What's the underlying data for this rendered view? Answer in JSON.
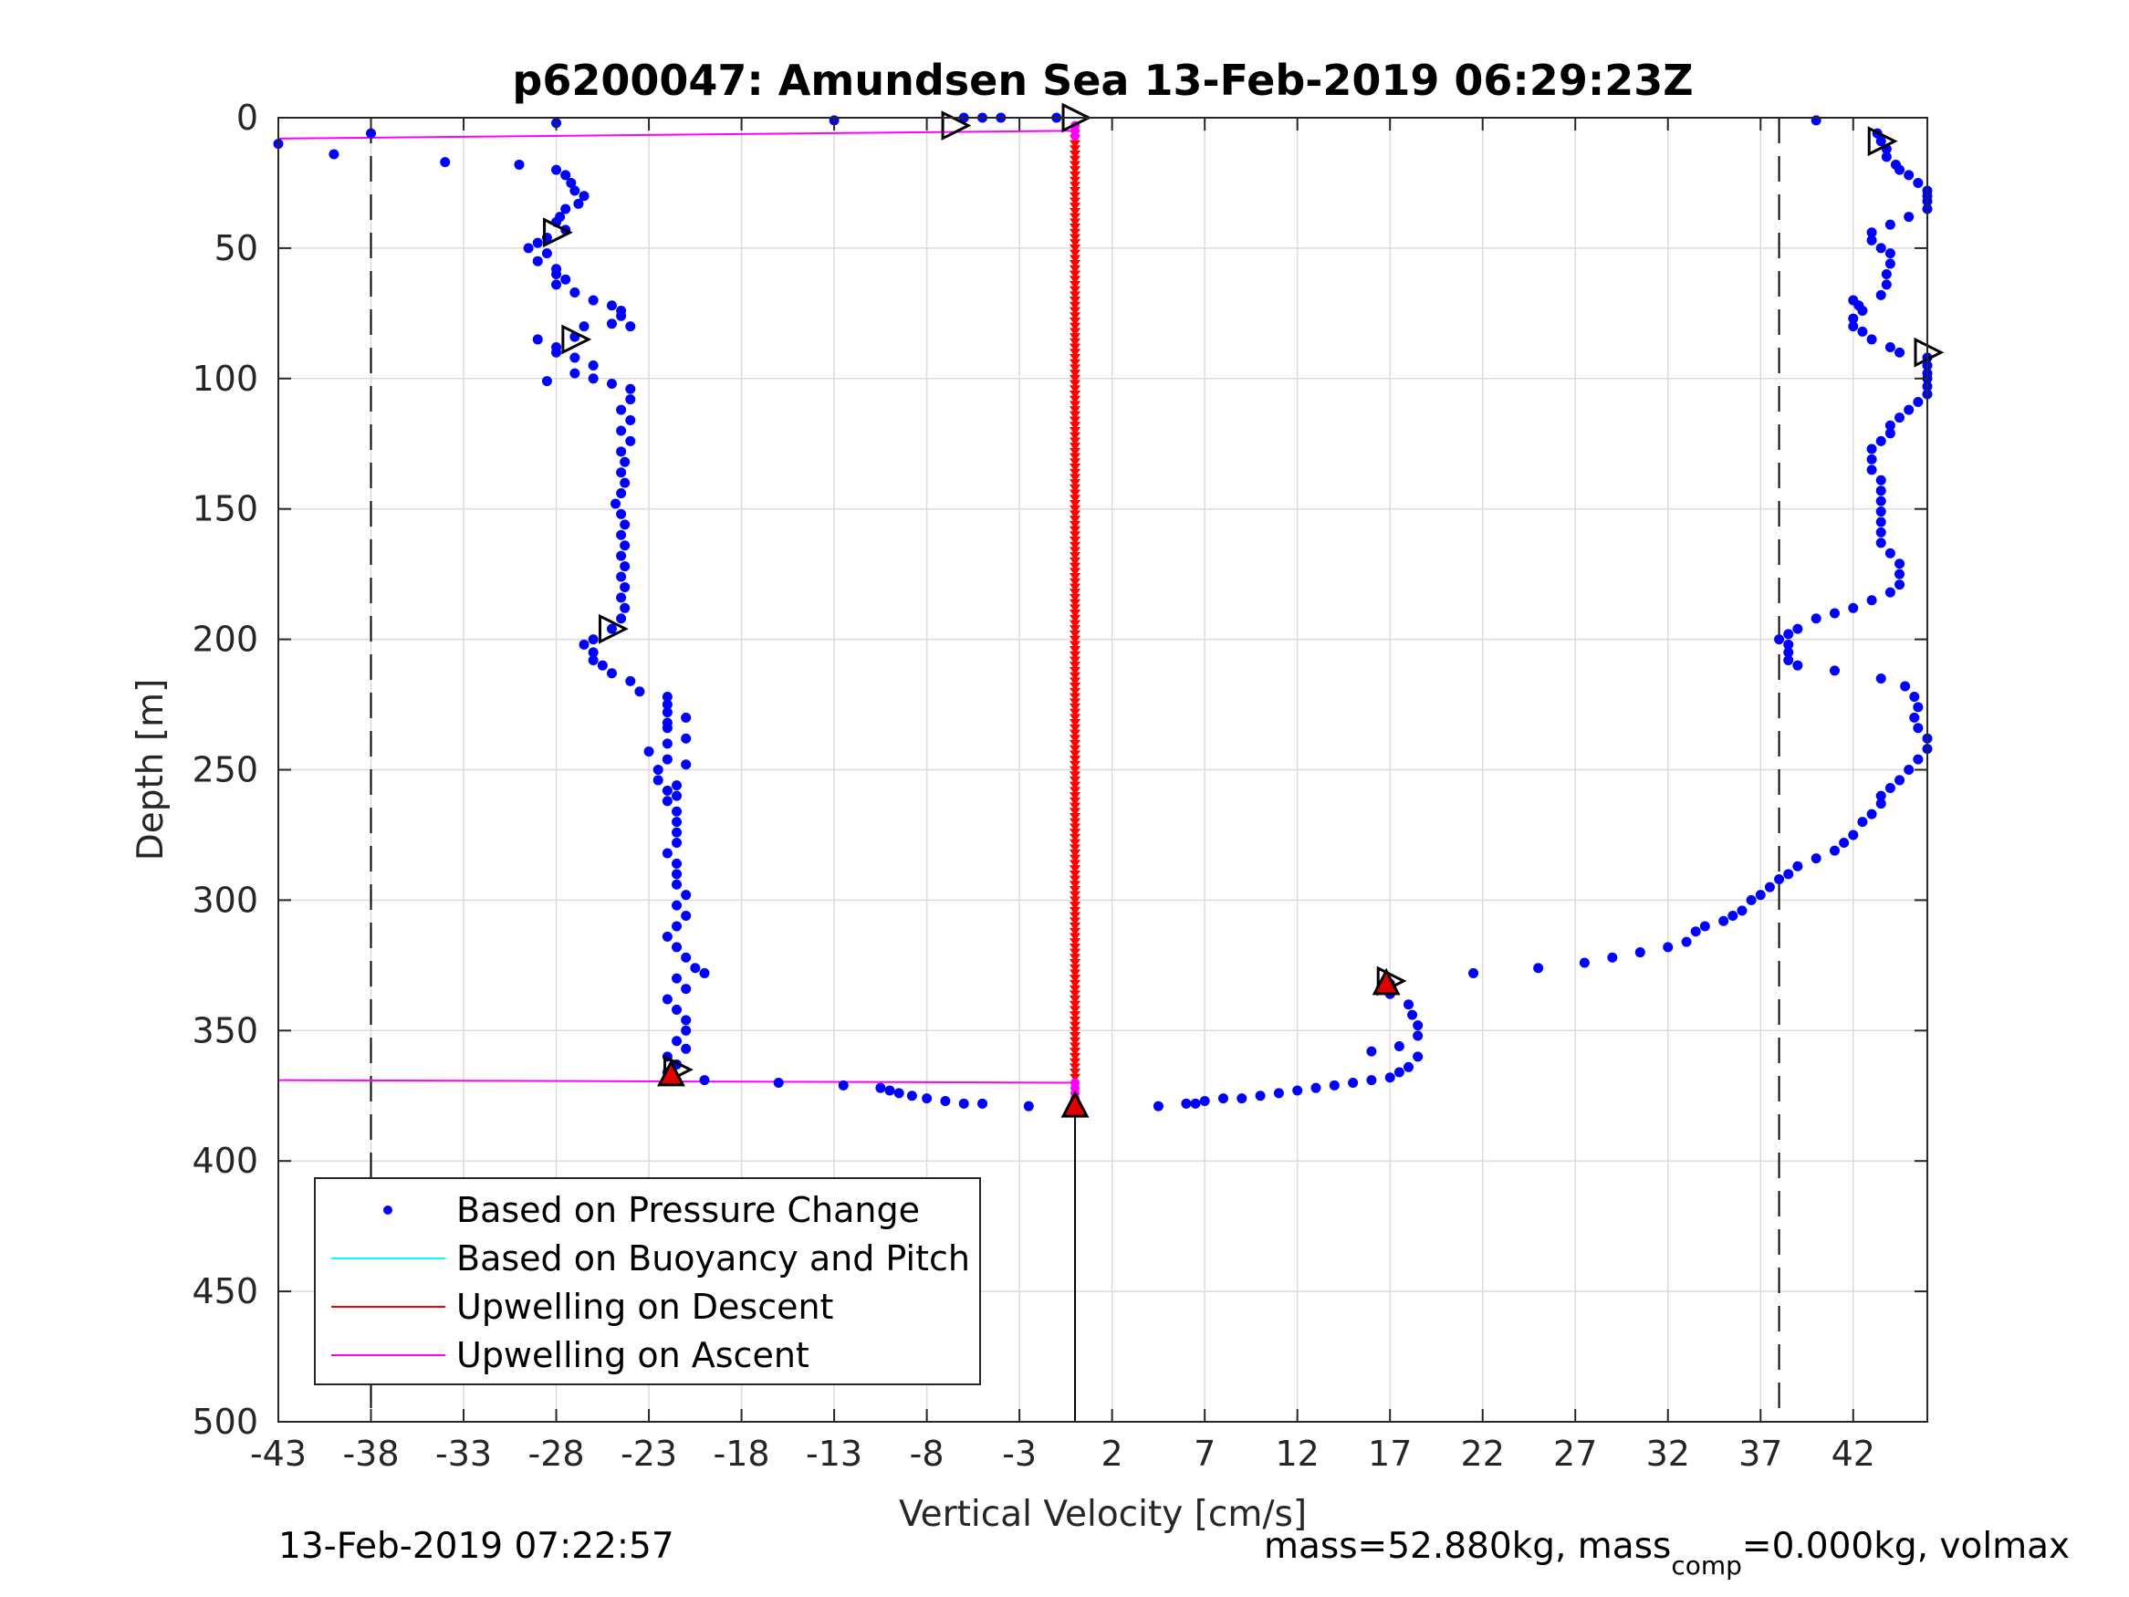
{
  "chart_data": {
    "type": "scatter",
    "title": "p6200047: Amundsen Sea 13-Feb-2019 06:29:23Z",
    "xlabel": "Vertical Velocity [cm/s]",
    "ylabel": "Depth [m]",
    "xlim": [
      -43,
      46
    ],
    "ylim": [
      0,
      500
    ],
    "y_reversed": true,
    "grid": true,
    "xticks": [
      -43,
      -38,
      -33,
      -28,
      -23,
      -18,
      -13,
      -8,
      -3,
      2,
      7,
      12,
      17,
      22,
      27,
      32,
      37,
      42
    ],
    "xtick_labels": [
      "-43",
      "-38",
      "-33",
      "-28",
      "-23",
      "-18",
      "-13",
      "-8",
      "-3",
      "2",
      "7",
      "12",
      "17",
      "22",
      "27",
      "32",
      "37",
      "42"
    ],
    "yticks": [
      0,
      50,
      100,
      150,
      200,
      250,
      300,
      350,
      400,
      450,
      500
    ],
    "ytick_labels": [
      "0",
      "50",
      "100",
      "150",
      "200",
      "250",
      "300",
      "350",
      "400",
      "450",
      "500"
    ],
    "reference_lines_x": [
      -38,
      38,
      0
    ],
    "legend": {
      "placement": "bottom-left",
      "entries": [
        {
          "label": "Based on Pressure Change",
          "color": "#0000ff",
          "marker": "dot"
        },
        {
          "label": "Based on Buoyancy and Pitch",
          "color": "#00ffff",
          "marker": "line"
        },
        {
          "label": "Upwelling on Descent",
          "color": "#ff0000",
          "marker": "line"
        },
        {
          "label": "Upwelling on Ascent",
          "color": "#ff00ff",
          "marker": "line"
        }
      ]
    },
    "series": [
      {
        "name": "Based on Pressure Change",
        "color": "#0000ff",
        "descent": [
          [
            -13,
            1
          ],
          [
            -6,
            0
          ],
          [
            -5,
            0
          ],
          [
            -4,
            0
          ],
          [
            -1,
            0
          ],
          [
            -28,
            2
          ],
          [
            -38,
            6
          ],
          [
            -43,
            10
          ],
          [
            -40,
            14
          ],
          [
            -34,
            17
          ],
          [
            -30,
            18
          ],
          [
            -28,
            20
          ],
          [
            -27.5,
            22
          ],
          [
            -27.2,
            25
          ],
          [
            -27,
            28
          ],
          [
            -26.5,
            30
          ],
          [
            -26.8,
            33
          ],
          [
            -27.5,
            35
          ],
          [
            -27.8,
            38
          ],
          [
            -28,
            40
          ],
          [
            -27.5,
            43
          ],
          [
            -28.5,
            46
          ],
          [
            -29,
            48
          ],
          [
            -29.5,
            50
          ],
          [
            -28.5,
            52
          ],
          [
            -29,
            55
          ],
          [
            -28,
            58
          ],
          [
            -28,
            60
          ],
          [
            -27.5,
            62
          ],
          [
            -28,
            64
          ],
          [
            -27,
            67
          ],
          [
            -26,
            70
          ],
          [
            -25,
            72
          ],
          [
            -24.5,
            74
          ],
          [
            -24.5,
            76
          ],
          [
            -25,
            79
          ],
          [
            -26.5,
            80
          ],
          [
            -24,
            80
          ],
          [
            -27,
            84
          ],
          [
            -29,
            85
          ],
          [
            -28,
            88
          ],
          [
            -28,
            90
          ],
          [
            -27,
            92
          ],
          [
            -26,
            95
          ],
          [
            -27,
            98
          ],
          [
            -26,
            100
          ],
          [
            -28.5,
            101
          ],
          [
            -25,
            102
          ],
          [
            -24,
            104
          ],
          [
            -24,
            108
          ],
          [
            -24.5,
            112
          ],
          [
            -24,
            116
          ],
          [
            -24.5,
            120
          ],
          [
            -24,
            124
          ],
          [
            -24.5,
            128
          ],
          [
            -24.3,
            132
          ],
          [
            -24.5,
            136
          ],
          [
            -24.3,
            140
          ],
          [
            -24.5,
            144
          ],
          [
            -24.8,
            148
          ],
          [
            -24.5,
            152
          ],
          [
            -24.3,
            156
          ],
          [
            -24.5,
            160
          ],
          [
            -24.3,
            164
          ],
          [
            -24.5,
            168
          ],
          [
            -24.3,
            172
          ],
          [
            -24.5,
            176
          ],
          [
            -24.3,
            180
          ],
          [
            -24.5,
            184
          ],
          [
            -24.3,
            188
          ],
          [
            -24.5,
            192
          ],
          [
            -25,
            196
          ],
          [
            -26,
            200
          ],
          [
            -26.5,
            202
          ],
          [
            -26,
            205
          ],
          [
            -26,
            208
          ],
          [
            -25.5,
            210
          ],
          [
            -25,
            213
          ],
          [
            -24,
            216
          ],
          [
            -23.5,
            220
          ],
          [
            -22,
            222
          ],
          [
            -22,
            225
          ],
          [
            -22,
            228
          ],
          [
            -21,
            230
          ],
          [
            -22,
            232
          ],
          [
            -22,
            234
          ],
          [
            -21,
            238
          ],
          [
            -22,
            240
          ],
          [
            -23,
            243
          ],
          [
            -22,
            246
          ],
          [
            -21,
            248
          ],
          [
            -22.5,
            250
          ],
          [
            -22.5,
            254
          ],
          [
            -21.5,
            256
          ],
          [
            -22,
            258
          ],
          [
            -21.5,
            260
          ],
          [
            -22,
            262
          ],
          [
            -21.5,
            266
          ],
          [
            -21.5,
            270
          ],
          [
            -21.5,
            274
          ],
          [
            -21.5,
            278
          ],
          [
            -22,
            282
          ],
          [
            -21.5,
            286
          ],
          [
            -21.5,
            290
          ],
          [
            -21.5,
            294
          ],
          [
            -21,
            298
          ],
          [
            -21.5,
            302
          ],
          [
            -21,
            306
          ],
          [
            -21.5,
            310
          ],
          [
            -22,
            314
          ],
          [
            -21.5,
            318
          ],
          [
            -21,
            322
          ],
          [
            -20.5,
            326
          ],
          [
            -20,
            328
          ],
          [
            -21.5,
            330
          ],
          [
            -21,
            334
          ],
          [
            -22,
            338
          ],
          [
            -21.5,
            342
          ],
          [
            -21,
            346
          ],
          [
            -21,
            350
          ],
          [
            -21.5,
            354
          ],
          [
            -21,
            357
          ],
          [
            -22,
            360
          ],
          [
            -21.5,
            363
          ],
          [
            -22,
            366
          ],
          [
            -20,
            369
          ],
          [
            -16,
            370
          ],
          [
            -12.5,
            371
          ],
          [
            -10.5,
            372
          ],
          [
            -10,
            373
          ],
          [
            -9.5,
            374
          ],
          [
            -8.8,
            375
          ],
          [
            -8,
            376
          ],
          [
            -7,
            377
          ],
          [
            -6,
            378
          ],
          [
            -5,
            378
          ],
          [
            -2.5,
            379
          ]
        ],
        "ascent": [
          [
            4.5,
            379
          ],
          [
            6,
            378
          ],
          [
            6.5,
            378
          ],
          [
            7,
            377
          ],
          [
            8,
            376
          ],
          [
            9,
            376
          ],
          [
            10,
            375
          ],
          [
            11,
            374
          ],
          [
            12,
            373
          ],
          [
            13,
            372
          ],
          [
            14,
            371
          ],
          [
            15,
            370
          ],
          [
            16,
            369
          ],
          [
            17,
            368
          ],
          [
            17.5,
            366
          ],
          [
            18,
            364
          ],
          [
            18.5,
            360
          ],
          [
            16,
            358
          ],
          [
            17.5,
            356
          ],
          [
            18.5,
            352
          ],
          [
            18.5,
            348
          ],
          [
            18.2,
            344
          ],
          [
            18,
            340
          ],
          [
            17,
            336
          ],
          [
            16.5,
            334
          ],
          [
            17,
            332
          ],
          [
            21.5,
            328
          ],
          [
            25,
            326
          ],
          [
            27.5,
            324
          ],
          [
            29,
            322
          ],
          [
            30.5,
            320
          ],
          [
            32,
            318
          ],
          [
            33,
            316
          ],
          [
            33.5,
            312
          ],
          [
            34,
            310
          ],
          [
            35,
            308
          ],
          [
            35.5,
            306
          ],
          [
            36,
            304
          ],
          [
            36.5,
            300
          ],
          [
            37,
            298
          ],
          [
            37.5,
            295
          ],
          [
            38,
            292
          ],
          [
            38.5,
            290
          ],
          [
            39,
            287
          ],
          [
            40,
            284
          ],
          [
            41,
            281
          ],
          [
            41.5,
            278
          ],
          [
            42,
            275
          ],
          [
            42.5,
            270
          ],
          [
            43,
            267
          ],
          [
            43.5,
            263
          ],
          [
            43.5,
            260
          ],
          [
            44,
            257
          ],
          [
            44.5,
            254
          ],
          [
            45,
            250
          ],
          [
            45.5,
            246
          ],
          [
            46,
            242
          ],
          [
            46,
            238
          ],
          [
            45.5,
            234
          ],
          [
            45.3,
            230
          ],
          [
            45.5,
            226
          ],
          [
            45.3,
            222
          ],
          [
            44.8,
            218
          ],
          [
            43.5,
            215
          ],
          [
            41,
            212
          ],
          [
            39,
            210
          ],
          [
            38.5,
            208
          ],
          [
            38.5,
            205
          ],
          [
            38.5,
            202
          ],
          [
            38,
            200
          ],
          [
            38.5,
            198
          ],
          [
            39,
            196
          ],
          [
            40,
            192
          ],
          [
            41,
            190
          ],
          [
            42,
            188
          ],
          [
            43,
            185
          ],
          [
            44,
            182
          ],
          [
            44.5,
            179
          ],
          [
            44.5,
            175
          ],
          [
            44.5,
            171
          ],
          [
            44,
            167
          ],
          [
            43.5,
            163
          ],
          [
            43.5,
            159
          ],
          [
            43.5,
            155
          ],
          [
            43.5,
            151
          ],
          [
            43.5,
            147
          ],
          [
            43.5,
            143
          ],
          [
            43.5,
            139
          ],
          [
            43,
            135
          ],
          [
            43,
            131
          ],
          [
            43,
            127
          ],
          [
            43.5,
            124
          ],
          [
            44,
            121
          ],
          [
            44,
            118
          ],
          [
            44.5,
            115
          ],
          [
            45,
            112
          ],
          [
            45.5,
            109
          ],
          [
            46,
            106
          ],
          [
            46.5,
            103
          ],
          [
            47,
            100
          ],
          [
            47.5,
            98
          ],
          [
            48,
            95
          ],
          [
            46,
            92
          ],
          [
            44.5,
            90
          ],
          [
            44,
            88
          ],
          [
            43,
            85
          ],
          [
            42.5,
            82
          ],
          [
            42,
            80
          ],
          [
            42,
            77
          ],
          [
            42.5,
            74
          ],
          [
            42.3,
            72
          ],
          [
            42,
            70
          ],
          [
            43.5,
            68
          ],
          [
            43.8,
            64
          ],
          [
            43.8,
            60
          ],
          [
            44,
            56
          ],
          [
            44,
            52
          ],
          [
            43.5,
            50
          ],
          [
            43,
            47
          ],
          [
            43,
            44
          ],
          [
            44,
            41
          ],
          [
            45,
            38
          ],
          [
            46,
            35
          ],
          [
            47,
            32
          ],
          [
            48,
            30
          ],
          [
            47.5,
            28
          ],
          [
            45.5,
            25
          ],
          [
            45,
            22
          ],
          [
            44.5,
            20
          ],
          [
            44.3,
            18
          ],
          [
            43.8,
            15
          ],
          [
            43.8,
            12
          ],
          [
            43.5,
            9
          ],
          [
            43.3,
            6
          ],
          [
            40,
            1
          ]
        ]
      },
      {
        "name": "Upwelling on Descent",
        "color": "#ff0000",
        "x_const": 0,
        "depth_range": [
          8,
          369
        ],
        "spacing": 2
      },
      {
        "name": "Upwelling on Ascent",
        "color": "#ff00ff",
        "lines": [
          [
            [
              -43,
              8
            ],
            [
              0,
              5
            ]
          ],
          [
            [
              -43,
              369
            ],
            [
              0,
              370
            ]
          ]
        ],
        "points": [
          [
            0,
            3
          ],
          [
            0,
            5
          ],
          [
            0,
            7
          ],
          [
            0,
            370
          ],
          [
            0,
            372
          ],
          [
            0,
            374
          ],
          [
            0,
            376
          ]
        ]
      }
    ],
    "triangle_markers_right": [
      [
        -6.5,
        3
      ],
      [
        0,
        0
      ],
      [
        43.5,
        9
      ],
      [
        -28,
        44
      ],
      [
        -27,
        85
      ],
      [
        48.5,
        90
      ],
      [
        -25,
        196
      ],
      [
        -21.5,
        365
      ],
      [
        17,
        331
      ]
    ],
    "triangle_markers_up": [
      [
        -21.8,
        367
      ],
      [
        0,
        379
      ],
      [
        16.8,
        332
      ]
    ],
    "bottom_stem": {
      "x": 0,
      "from": 379,
      "to": 500
    }
  },
  "footer": {
    "timestamp": "13-Feb-2019 07:22:57",
    "mass_text": "mass=52.880kg, mass",
    "mass_sub": "comp",
    "mass_rest": "=0.000kg, volmax"
  }
}
